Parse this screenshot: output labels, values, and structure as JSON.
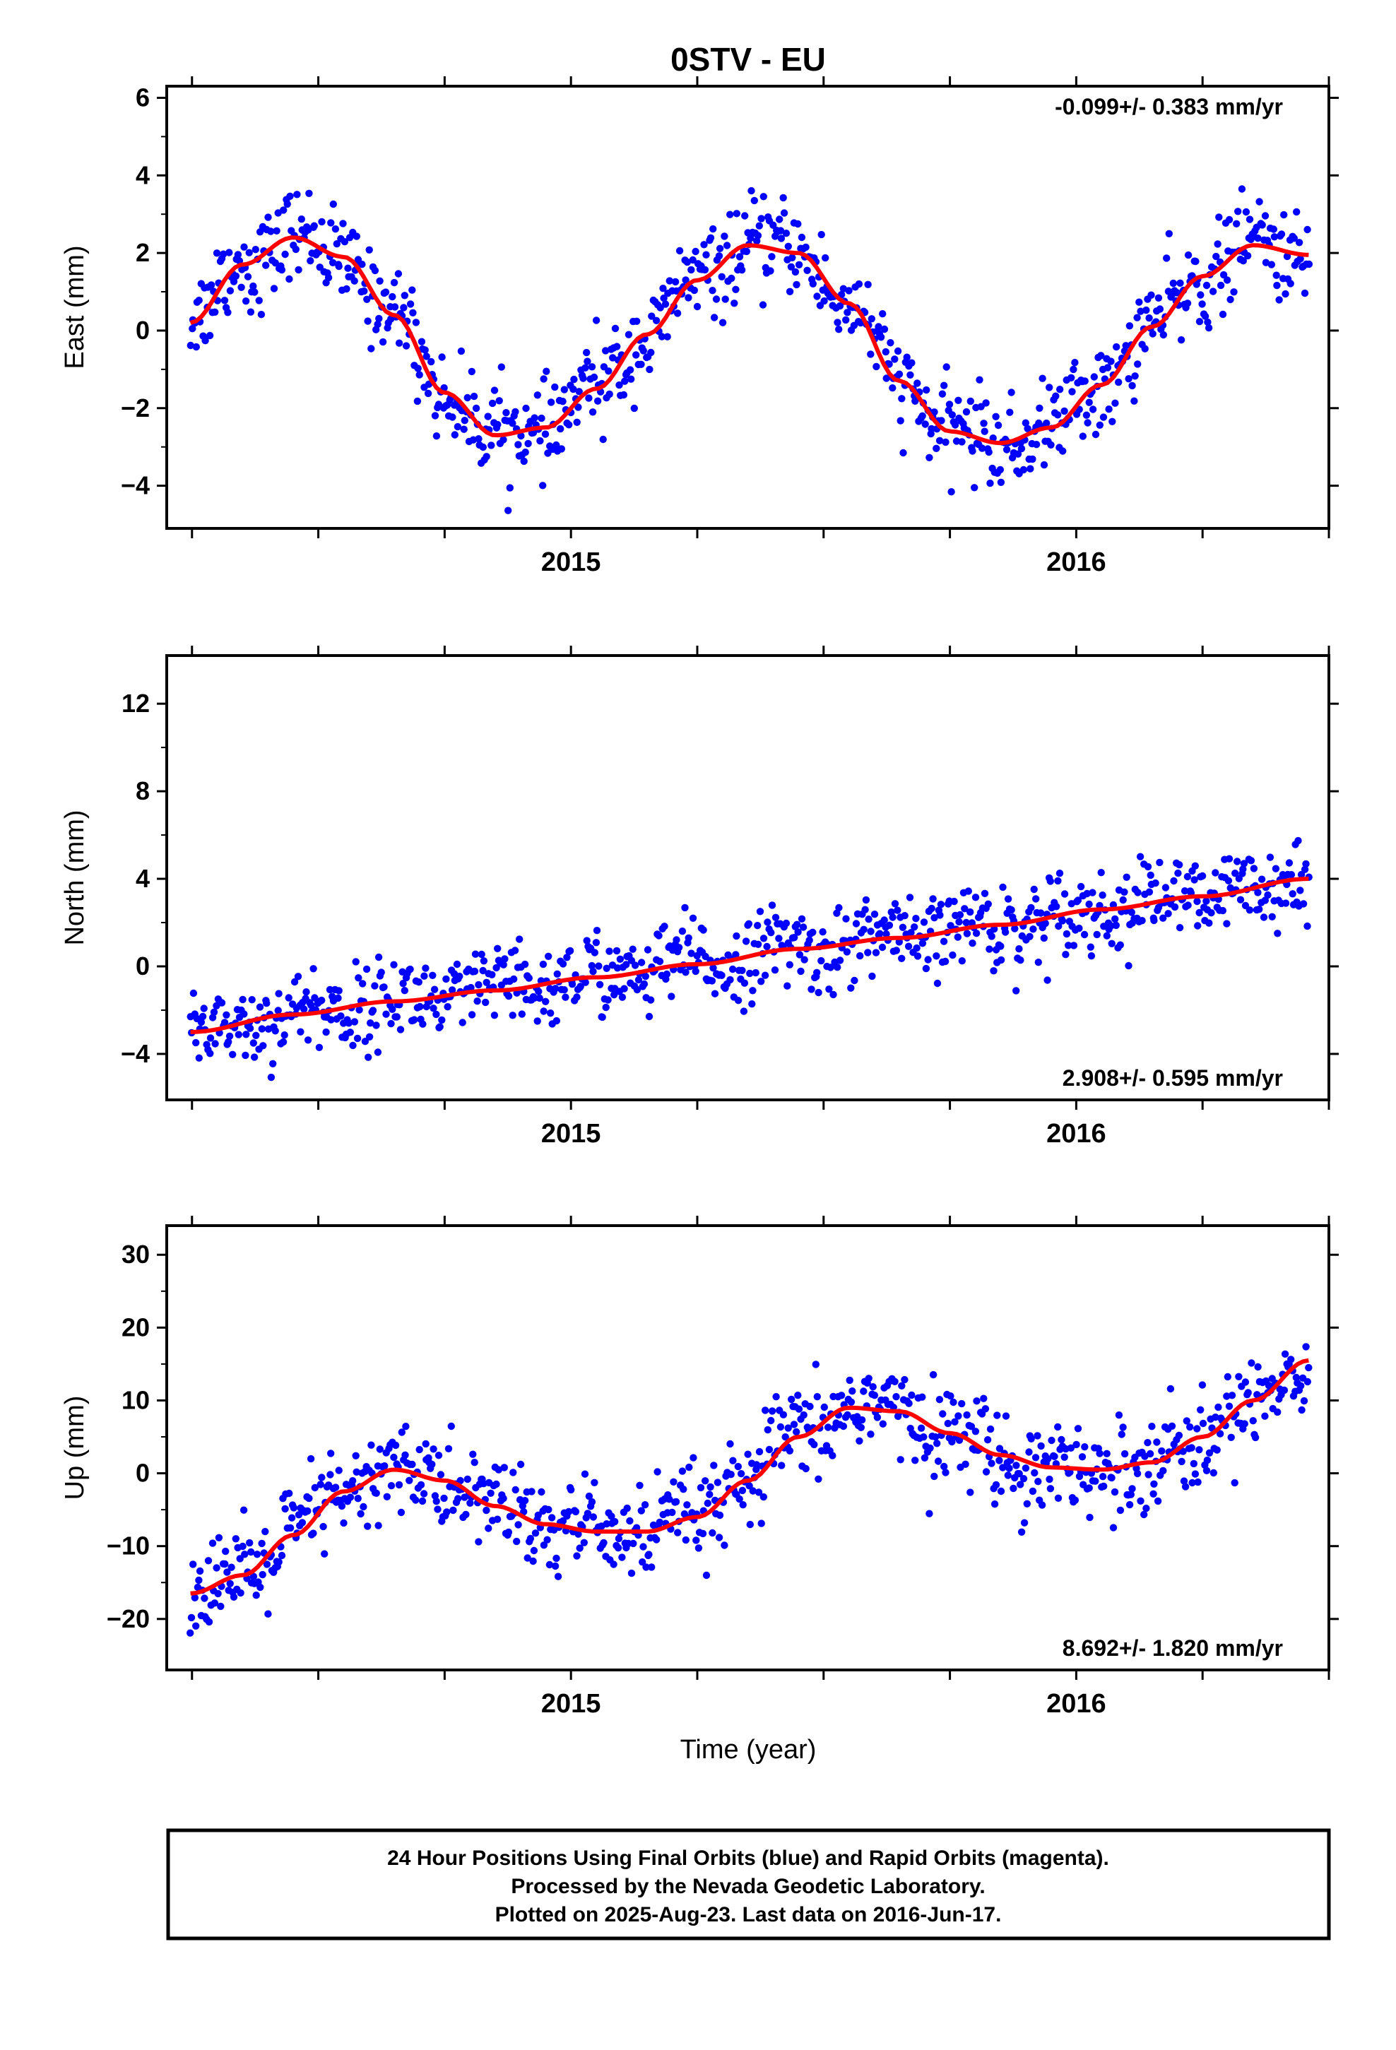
{
  "title": "0STV - EU",
  "colors": {
    "points": "#0000ff",
    "fit": "#ff0000",
    "frame": "#000000"
  },
  "xlabel": "Time (year)",
  "footer": {
    "lines": [
      "24 Hour Positions Using Final Orbits (blue) and Rapid Orbits (magenta).",
      "Processed by the Nevada Geodetic Laboratory.",
      "Plotted on 2025-Aug-23. Last data on 2016-Jun-17."
    ]
  },
  "chart_data": [
    {
      "type": "scatter",
      "ylabel": "East (mm)",
      "rate_label": "-0.099+/- 0.383 mm/yr",
      "xlim": [
        2014.2,
        2016.5
      ],
      "ylim": [
        -5.1,
        6.3
      ],
      "yticks": [
        -4,
        -2,
        0,
        2,
        4,
        6
      ],
      "xticks": [
        2015,
        2016
      ],
      "xtick_labels": [
        "2015",
        "2016"
      ],
      "fit_line": {
        "x": [
          2014.247,
          2014.35,
          2014.45,
          2014.55,
          2014.65,
          2014.75,
          2014.85,
          2014.95,
          2015.05,
          2015.15,
          2015.25,
          2015.35,
          2015.45,
          2015.55,
          2015.65,
          2015.75,
          2015.85,
          2015.95,
          2016.05,
          2016.15,
          2016.25,
          2016.35,
          2016.46
        ],
        "y": [
          0.2,
          1.7,
          2.4,
          1.9,
          0.4,
          -1.6,
          -2.7,
          -2.5,
          -1.5,
          -0.1,
          1.3,
          2.2,
          2.0,
          0.7,
          -1.3,
          -2.6,
          -2.9,
          -2.5,
          -1.4,
          0.1,
          1.4,
          2.2,
          1.95
        ]
      },
      "points": {
        "count": 820,
        "amplitude": 2.6,
        "mean": 0.0,
        "scatter_sd": 0.75
      }
    },
    {
      "type": "scatter",
      "ylabel": "North (mm)",
      "rate_label": "2.908+/- 0.595 mm/yr",
      "xlim": [
        2014.2,
        2016.5
      ],
      "ylim": [
        -6.1,
        14.2
      ],
      "yticks": [
        -4,
        0,
        4,
        8,
        12
      ],
      "xticks": [
        2015,
        2016
      ],
      "xtick_labels": [
        "2015",
        "2016"
      ],
      "fit_line": {
        "x": [
          2014.247,
          2014.45,
          2014.65,
          2014.85,
          2015.05,
          2015.25,
          2015.45,
          2015.65,
          2015.85,
          2016.05,
          2016.25,
          2016.46
        ],
        "y": [
          -3.0,
          -2.2,
          -1.6,
          -1.1,
          -0.5,
          0.1,
          0.8,
          1.3,
          1.9,
          2.6,
          3.2,
          4.0
        ]
      },
      "points": {
        "count": 820,
        "scatter_sd": 1.2
      }
    },
    {
      "type": "scatter",
      "ylabel": "Up (mm)",
      "rate_label": "8.692+/- 1.820 mm/yr",
      "xlim": [
        2014.2,
        2016.5
      ],
      "ylim": [
        -27,
        34
      ],
      "yticks": [
        -20,
        -10,
        0,
        10,
        20,
        30
      ],
      "xticks": [
        2015,
        2016
      ],
      "xtick_labels": [
        "2015",
        "2016"
      ],
      "fit_line": {
        "x": [
          2014.247,
          2014.35,
          2014.45,
          2014.55,
          2014.65,
          2014.75,
          2014.85,
          2014.95,
          2015.05,
          2015.15,
          2015.25,
          2015.35,
          2015.45,
          2015.55,
          2015.65,
          2015.75,
          2015.85,
          2015.95,
          2016.05,
          2016.15,
          2016.25,
          2016.35,
          2016.46
        ],
        "y": [
          -16.5,
          -14.0,
          -8.5,
          -2.5,
          0.5,
          -1.0,
          -4.5,
          -7.0,
          -8.0,
          -8.0,
          -6.0,
          -1.0,
          5.0,
          9.0,
          8.5,
          5.5,
          2.5,
          0.8,
          0.5,
          1.5,
          5.0,
          10.0,
          15.5
        ]
      },
      "points": {
        "count": 820,
        "scatter_sd": 4.2
      }
    }
  ]
}
